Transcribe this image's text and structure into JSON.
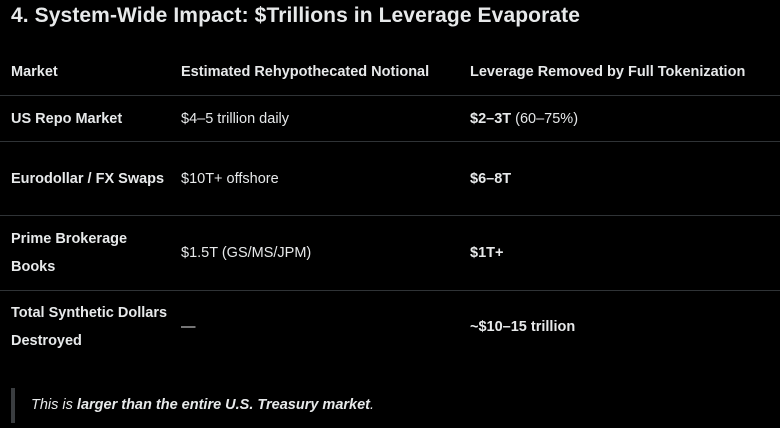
{
  "heading": "4. System-Wide Impact: $Trillions in Leverage Evaporate",
  "table": {
    "headers": [
      "Market",
      "Estimated Rehypothecated Notional",
      "Leverage Removed by Full Tokenization"
    ],
    "rows": [
      {
        "market": "US Repo Market",
        "notional": "$4–5 trillion daily",
        "leverage_strong": "$2–3T",
        "leverage_rest": " (60–75%)"
      },
      {
        "market": "Eurodollar / FX Swaps",
        "notional": "$10T+ offshore",
        "leverage_strong": "$6–8T",
        "leverage_rest": ""
      },
      {
        "market": "Prime Brokerage Books",
        "notional": "$1.5T (GS/MS/JPM)",
        "leverage_strong": "$1T+",
        "leverage_rest": ""
      },
      {
        "market": "Total Synthetic Dollars Destroyed",
        "notional": "—",
        "leverage_strong": "~$10–15 trillion",
        "leverage_rest": ""
      }
    ]
  },
  "quote": {
    "plain_start": "This is ",
    "strong": "larger than the entire U.S. Treasury market",
    "plain_end": "."
  }
}
